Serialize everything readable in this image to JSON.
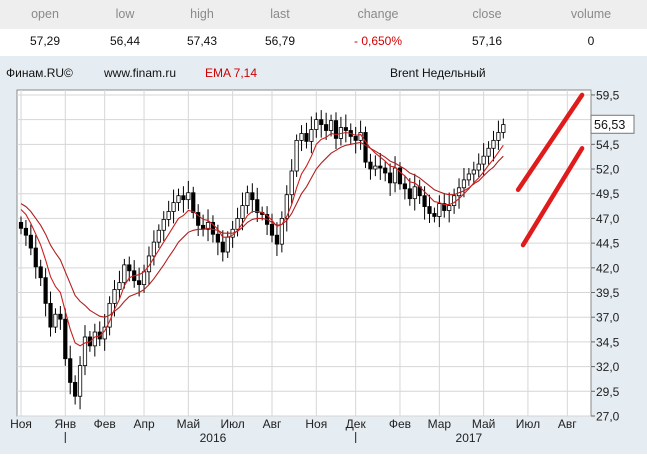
{
  "quote": {
    "headers": [
      "open",
      "low",
      "high",
      "last",
      "change",
      "close",
      "volume"
    ],
    "values": [
      "57,29",
      "56,44",
      "57,43",
      "56,79",
      "- 0,650%",
      "57,16",
      "0"
    ]
  },
  "chart_data": {
    "type": "candlestick",
    "source": "Финам.RU©",
    "url": "www.finam.ru",
    "indicator": "EMA 7,14",
    "title": "Brent Недельный",
    "ylim": [
      27.0,
      60.0
    ],
    "y_ticks": [
      "59,5",
      "57,0",
      "54,5",
      "52,0",
      "49,5",
      "47,0",
      "44,5",
      "42,0",
      "39,5",
      "37,0",
      "34,5",
      "32,0",
      "29,5",
      "27,0"
    ],
    "y_tick_values": [
      59.5,
      57.0,
      54.5,
      52.0,
      49.5,
      47.0,
      44.5,
      42.0,
      39.5,
      37.0,
      34.5,
      32.0,
      29.5,
      27.0
    ],
    "last_price_label": "56,53",
    "last_price": 56.53,
    "x_months": [
      "Ноя",
      "Янв",
      "Фев",
      "Апр",
      "Май",
      "Июл",
      "Авг",
      "Ноя",
      "Дек",
      "Фев",
      "Мар",
      "Май",
      "Июл",
      "Авг"
    ],
    "x_month_index": [
      0,
      9,
      17,
      25,
      34,
      43,
      51,
      60,
      68,
      77,
      85,
      94,
      103,
      111
    ],
    "x_years": [
      "2016",
      "2017"
    ],
    "x_year_index": [
      39,
      91
    ],
    "x_year_boundary_index": [
      9,
      68
    ],
    "closes": [
      46.0,
      45.3,
      44.0,
      42.1,
      41.0,
      38.4,
      36.0,
      37.3,
      36.8,
      32.8,
      30.4,
      29.0,
      32.1,
      35.0,
      34.1,
      35.5,
      34.8,
      36.0,
      38.4,
      39.8,
      40.5,
      42.3,
      41.7,
      40.7,
      40.3,
      41.6,
      43.2,
      44.6,
      45.8,
      46.9,
      47.7,
      48.6,
      49.3,
      48.9,
      49.6,
      47.6,
      46.3,
      45.9,
      46.6,
      45.4,
      44.6,
      43.6,
      45.1,
      45.9,
      47.0,
      48.3,
      49.6,
      48.9,
      47.6,
      47.4,
      46.4,
      45.3,
      44.4,
      47.0,
      49.4,
      51.8,
      54.9,
      55.6,
      54.8,
      56.0,
      57.0,
      56.5,
      55.9,
      56.9,
      55.1,
      56.2,
      55.9,
      55.3,
      54.9,
      55.7,
      52.7,
      52.0,
      52.3,
      52.1,
      51.6,
      50.6,
      52.1,
      50.5,
      50.0,
      49.0,
      50.2,
      49.3,
      48.2,
      47.5,
      47.2,
      48.5,
      47.8,
      48.3,
      49.3,
      50.1,
      50.9,
      51.5,
      51.9,
      52.5,
      53.3,
      54.1,
      54.9,
      55.7,
      56.5
    ],
    "ema_fast": [
      47.9,
      47.4,
      46.5,
      45.4,
      44.3,
      42.8,
      41.1,
      40.1,
      39.5,
      37.6,
      35.8,
      34.4,
      34.1,
      34.4,
      34.5,
      35.0,
      35.1,
      35.6,
      36.6,
      37.8,
      38.8,
      40.2,
      41.0,
      41.2,
      41.3,
      41.6,
      42.2,
      43.0,
      43.8,
      44.6,
      45.4,
      46.2,
      47.0,
      47.3,
      47.8,
      47.7,
      47.3,
      46.9,
      46.8,
      46.4,
      45.9,
      45.1,
      45.1,
      45.3,
      45.8,
      46.5,
      47.3,
      47.7,
      47.7,
      47.6,
      47.3,
      46.8,
      46.2,
      46.4,
      47.2,
      48.4,
      50.1,
      51.5,
      52.3,
      53.3,
      54.5,
      55.0,
      55.2,
      55.6,
      55.5,
      55.6,
      55.7,
      55.6,
      55.4,
      55.5,
      54.8,
      54.1,
      53.6,
      53.2,
      52.8,
      52.3,
      52.2,
      51.7,
      51.3,
      50.7,
      50.6,
      50.2,
      49.7,
      49.2,
      48.7,
      48.6,
      48.4,
      48.4,
      48.6,
      49.0,
      49.5,
      50.0,
      50.6,
      51.1,
      51.7,
      52.4,
      53.0,
      53.7,
      54.4
    ],
    "ema_slow": [
      48.5,
      48.2,
      47.7,
      47.0,
      46.3,
      45.4,
      44.3,
      43.5,
      42.8,
      41.6,
      40.4,
      39.2,
      38.6,
      38.2,
      37.7,
      37.4,
      37.1,
      37.0,
      37.2,
      37.6,
      38.0,
      38.6,
      39.1,
      39.3,
      39.5,
      39.8,
      40.3,
      40.9,
      41.6,
      42.3,
      43.1,
      43.8,
      44.6,
      45.1,
      45.6,
      45.8,
      45.9,
      45.9,
      46.0,
      45.9,
      45.8,
      45.5,
      45.5,
      45.5,
      45.7,
      46.1,
      46.6,
      46.9,
      47.0,
      47.0,
      46.9,
      46.6,
      46.3,
      46.4,
      46.8,
      47.5,
      48.5,
      49.5,
      50.2,
      51.1,
      52.0,
      52.6,
      53.1,
      53.6,
      53.9,
      54.2,
      54.4,
      54.5,
      54.6,
      54.7,
      54.4,
      54.1,
      53.8,
      53.5,
      53.2,
      52.8,
      52.6,
      52.3,
      52.0,
      51.6,
      51.4,
      51.1,
      50.7,
      50.3,
      49.9,
      49.7,
      49.5,
      49.4,
      49.4,
      49.6,
      49.8,
      50.1,
      50.5,
      50.8,
      51.3,
      51.8,
      52.2,
      52.8,
      53.3
    ],
    "channel_upper": {
      "x": [
        101,
        114
      ],
      "y": [
        49.9,
        59.5
      ]
    },
    "channel_lower": {
      "x": [
        102,
        114
      ],
      "y": [
        44.3,
        54.1
      ]
    }
  }
}
